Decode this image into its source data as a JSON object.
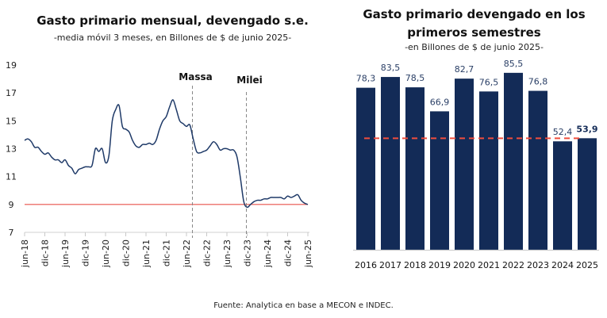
{
  "footer": {
    "source": "Fuente: Analytica en base a MECON e INDEC."
  },
  "chart_data": [
    {
      "type": "line",
      "title": "Gasto primario mensual, devengado s.e.",
      "subtitle": "-media móvil 3 meses, en Billones de $ de junio 2025-",
      "xlabel": "",
      "ylabel": "",
      "ylim": [
        7,
        19
      ],
      "yticks": [
        7,
        9,
        11,
        13,
        15,
        17,
        19
      ],
      "xticks": [
        "jun-18",
        "dic-18",
        "jun-19",
        "dic-19",
        "jun-20",
        "dic-20",
        "jun-21",
        "dic-21",
        "jun-22",
        "dic-22",
        "jun-23",
        "dic-23",
        "jun-24",
        "dic-24",
        "jun-25"
      ],
      "grid": false,
      "reference_line": {
        "value": 9,
        "color": "#e8524a"
      },
      "annotations": [
        {
          "label": "Massa",
          "x_month_index": 50
        },
        {
          "label": "Milei",
          "x_month_index": 66
        }
      ],
      "series": [
        {
          "name": "Gasto primario mensual",
          "color": "#1f3a68",
          "start": "jun-18",
          "values": [
            13.6,
            13.7,
            13.5,
            13.1,
            13.1,
            12.8,
            12.6,
            12.7,
            12.4,
            12.2,
            12.2,
            12.0,
            12.2,
            11.8,
            11.6,
            11.2,
            11.5,
            11.6,
            11.7,
            11.7,
            11.8,
            13.0,
            12.8,
            13.0,
            12.0,
            12.5,
            15.0,
            15.8,
            16.1,
            14.6,
            14.4,
            14.2,
            13.6,
            13.2,
            13.1,
            13.3,
            13.3,
            13.4,
            13.3,
            13.6,
            14.4,
            15.0,
            15.3,
            16.0,
            16.5,
            15.8,
            15.0,
            14.8,
            14.6,
            14.7,
            13.7,
            12.8,
            12.7,
            12.8,
            12.9,
            13.2,
            13.5,
            13.3,
            12.9,
            13.0,
            13.0,
            12.9,
            12.9,
            12.4,
            10.9,
            9.2,
            8.8,
            9.0,
            9.2,
            9.3,
            9.3,
            9.4,
            9.4,
            9.5,
            9.5,
            9.5,
            9.5,
            9.4,
            9.6,
            9.5,
            9.6,
            9.7,
            9.3,
            9.1,
            9.0
          ]
        }
      ]
    },
    {
      "type": "bar",
      "title": "Gasto primario devengado en los primeros semestres",
      "subtitle": "-en Billones de $ de junio 2025-",
      "xlabel": "",
      "ylabel": "",
      "ylim": [
        0,
        90
      ],
      "categories": [
        "2016",
        "2017",
        "2018",
        "2019",
        "2020",
        "2021",
        "2022",
        "2023",
        "2024",
        "2025"
      ],
      "values": [
        78.3,
        83.5,
        78.5,
        66.9,
        82.7,
        76.5,
        85.5,
        76.8,
        52.4,
        53.9
      ],
      "data_labels": [
        "78,3",
        "83,5",
        "78,5",
        "66,9",
        "82,7",
        "76,5",
        "85,5",
        "76,8",
        "52,4",
        "53,9"
      ],
      "highlight_index": 9,
      "bar_color": "#132b57",
      "reference_line": {
        "value": 53.9,
        "color": "#f04e3e",
        "style": "dashed"
      },
      "grid": false
    }
  ]
}
